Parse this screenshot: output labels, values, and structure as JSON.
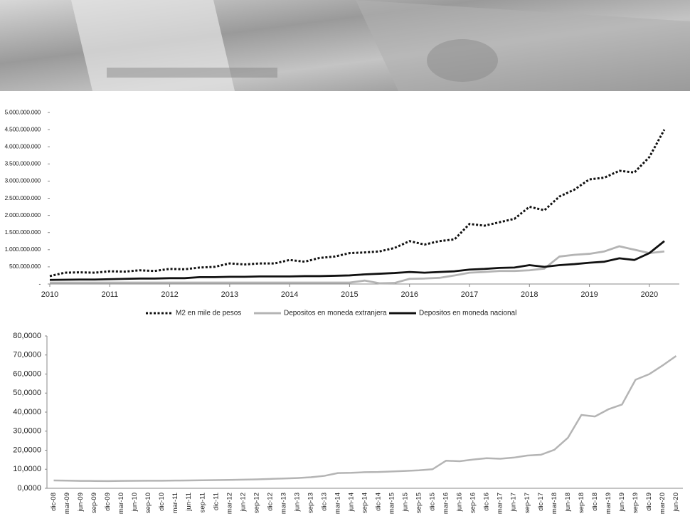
{
  "chart_data": [
    {
      "type": "line",
      "x": [
        2010,
        2010.25,
        2010.5,
        2010.75,
        2011,
        2011.25,
        2011.5,
        2011.75,
        2012,
        2012.25,
        2012.5,
        2012.75,
        2013,
        2013.25,
        2013.5,
        2013.75,
        2014,
        2014.25,
        2014.5,
        2014.75,
        2015,
        2015.25,
        2015.5,
        2015.75,
        2016,
        2016.25,
        2016.5,
        2016.75,
        2017,
        2017.25,
        2017.5,
        2017.75,
        2018,
        2018.25,
        2018.5,
        2018.75,
        2019,
        2019.25,
        2019.5,
        2019.75,
        2020,
        2020.25
      ],
      "series": [
        {
          "name": "M2 en mile de pesos",
          "color": "#111111",
          "dash": "dotted",
          "values": [
            230000000,
            330000000,
            340000000,
            330000000,
            370000000,
            360000000,
            400000000,
            380000000,
            440000000,
            430000000,
            480000000,
            500000000,
            600000000,
            570000000,
            600000000,
            600000000,
            700000000,
            650000000,
            760000000,
            800000000,
            900000000,
            920000000,
            950000000,
            1050000000,
            1250000000,
            1150000000,
            1250000000,
            1300000000,
            1750000000,
            1700000000,
            1800000000,
            1900000000,
            2250000000,
            2150000000,
            2550000000,
            2750000000,
            3050000000,
            3100000000,
            3300000000,
            3250000000,
            3700000000,
            4500000000
          ]
        },
        {
          "name": "Depositos en moneda extranjera",
          "color": "#b4b4b4",
          "dash": "solid",
          "values": [
            40000000,
            40000000,
            40000000,
            40000000,
            40000000,
            40000000,
            40000000,
            40000000,
            40000000,
            40000000,
            40000000,
            40000000,
            40000000,
            40000000,
            40000000,
            40000000,
            40000000,
            40000000,
            40000000,
            40000000,
            40000000,
            100000000,
            20000000,
            30000000,
            150000000,
            160000000,
            180000000,
            250000000,
            330000000,
            350000000,
            380000000,
            380000000,
            400000000,
            450000000,
            800000000,
            850000000,
            880000000,
            950000000,
            1100000000,
            1000000000,
            900000000,
            950000000
          ]
        },
        {
          "name": "Depositos en moneda nacional",
          "color": "#111111",
          "dash": "solid",
          "values": [
            120000000,
            125000000,
            130000000,
            130000000,
            140000000,
            150000000,
            160000000,
            160000000,
            170000000,
            170000000,
            200000000,
            200000000,
            210000000,
            210000000,
            220000000,
            220000000,
            220000000,
            230000000,
            230000000,
            240000000,
            250000000,
            280000000,
            300000000,
            320000000,
            350000000,
            330000000,
            350000000,
            370000000,
            420000000,
            440000000,
            470000000,
            480000000,
            550000000,
            500000000,
            550000000,
            580000000,
            620000000,
            650000000,
            750000000,
            700000000,
            900000000,
            1250000000
          ]
        }
      ],
      "xlim": [
        2010,
        2020.5
      ],
      "xticks": [
        2010,
        2011,
        2012,
        2013,
        2014,
        2015,
        2016,
        2017,
        2018,
        2019,
        2020
      ],
      "ylim": [
        0,
        5000000000
      ],
      "yticks": [
        {
          "value": 0,
          "label": "-"
        },
        {
          "value": 500000000,
          "label": "500.000.000"
        },
        {
          "value": 1000000000,
          "label": "1.000.000.000"
        },
        {
          "value": 1500000000,
          "label": "1.500.000.000"
        },
        {
          "value": 2000000000,
          "label": "2.000.000.000"
        },
        {
          "value": 2500000000,
          "label": "2.500.000.000"
        },
        {
          "value": 3000000000,
          "label": "3.000.000.000"
        },
        {
          "value": 3500000000,
          "label": "3.500.000.000"
        },
        {
          "value": 4000000000,
          "label": "4.000.000.000"
        },
        {
          "value": 4500000000,
          "label": "4.500.000.000"
        },
        {
          "value": 5000000000,
          "label": "5.000.000.000"
        }
      ],
      "grid": false,
      "legend": "bottom"
    },
    {
      "type": "line",
      "categories": [
        "dic-08",
        "mar-09",
        "jun-09",
        "sep-09",
        "dic-09",
        "mar-10",
        "jun-10",
        "sep-10",
        "dic-10",
        "mar-11",
        "jun-11",
        "sep-11",
        "dic-11",
        "mar-12",
        "jun-12",
        "sep-12",
        "dic-12",
        "mar-13",
        "jun-13",
        "sep-13",
        "dic-13",
        "mar-14",
        "jun-14",
        "sep-14",
        "dic-14",
        "mar-15",
        "jun-15",
        "sep-15",
        "dic-15",
        "mar-16",
        "jun-16",
        "sep-16",
        "dic-16",
        "mar-17",
        "jun-17",
        "sep-17",
        "dic-17",
        "mar-18",
        "jun-18",
        "sep-18",
        "dic-18",
        "mar-19",
        "jun-19",
        "sep-19",
        "dic-19",
        "mar-20",
        "jun-20"
      ],
      "color": "#b4b4b4",
      "values": [
        4.1,
        4.0,
        3.9,
        3.85,
        3.8,
        3.88,
        3.93,
        3.96,
        3.98,
        4.05,
        4.11,
        4.2,
        4.3,
        4.38,
        4.52,
        4.69,
        4.92,
        5.12,
        5.39,
        5.79,
        6.52,
        8.0,
        8.13,
        8.45,
        8.55,
        8.82,
        9.09,
        9.42,
        10.0,
        14.5,
        14.2,
        15.1,
        15.8,
        15.5,
        16.1,
        17.2,
        17.6,
        20.2,
        26.5,
        38.5,
        37.7,
        41.5,
        44.0,
        57.0,
        59.9,
        64.5,
        69.5
      ],
      "ylim": [
        0,
        80
      ],
      "yticks": [
        {
          "value": 0,
          "label": "0,0000"
        },
        {
          "value": 10,
          "label": "10,0000"
        },
        {
          "value": 20,
          "label": "20,0000"
        },
        {
          "value": 30,
          "label": "30,0000"
        },
        {
          "value": 40,
          "label": "40,0000"
        },
        {
          "value": 50,
          "label": "50,0000"
        },
        {
          "value": 60,
          "label": "60,0000"
        },
        {
          "value": 70,
          "label": "70,0000"
        },
        {
          "value": 80,
          "label": "80,0000"
        }
      ],
      "grid": false
    }
  ]
}
